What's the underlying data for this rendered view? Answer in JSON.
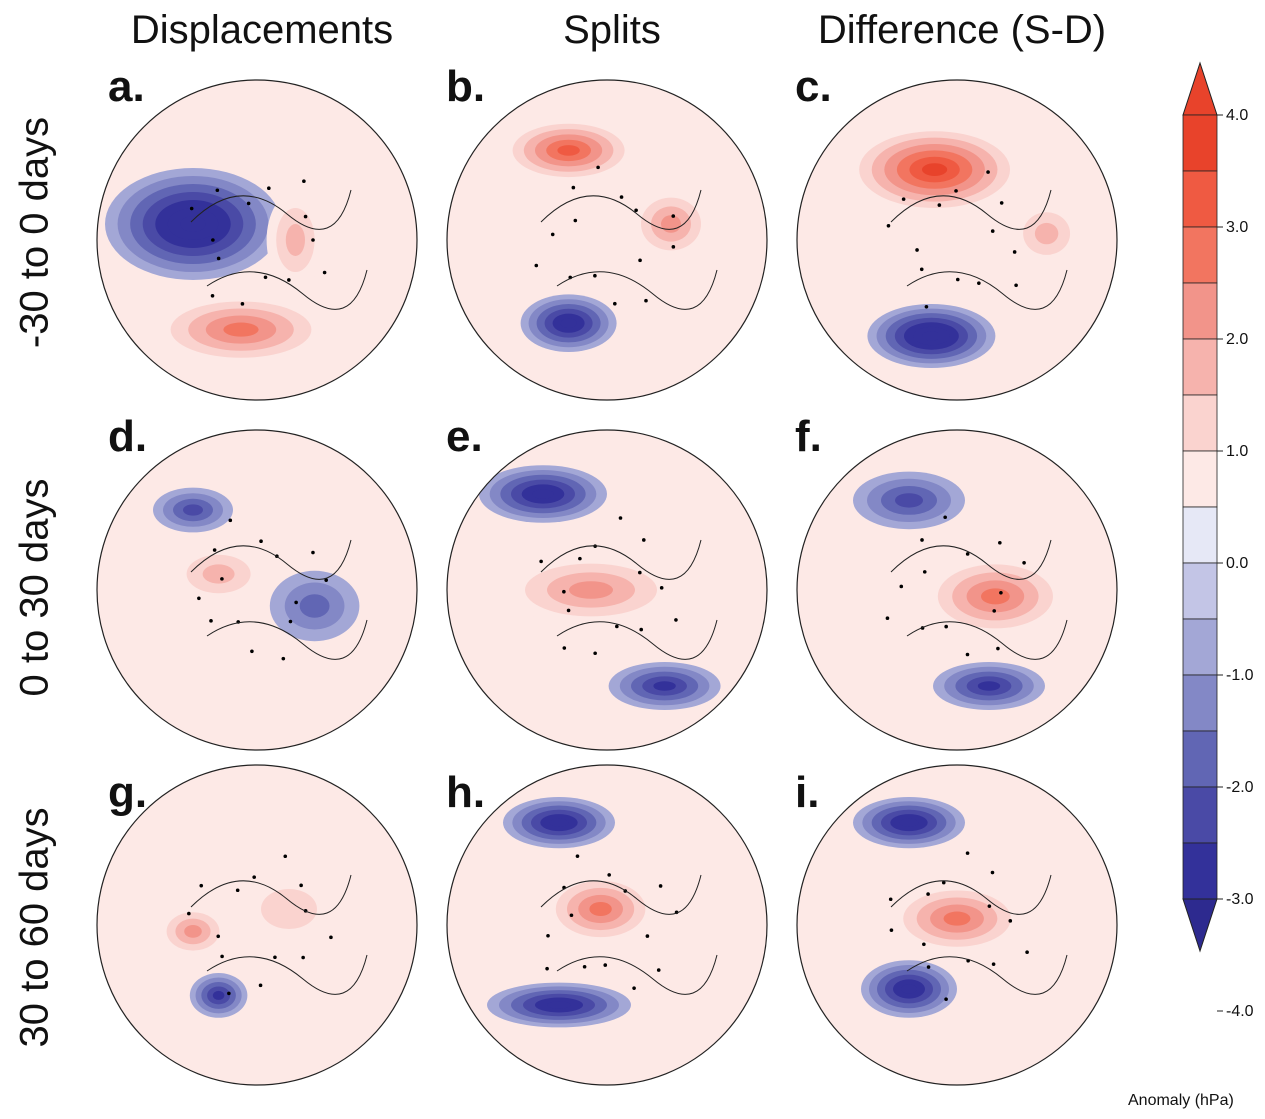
{
  "columns": [
    "Displacements",
    "Splits",
    "Difference (S-D)"
  ],
  "rows": [
    "-30 to 0 days",
    "0 to 30 days",
    "30 to 60 days"
  ],
  "panels": [
    "a.",
    "b.",
    "c.",
    "d.",
    "e.",
    "f.",
    "g.",
    "h.",
    "i."
  ],
  "colorbar": {
    "label": "Anomaly (hPa)",
    "ticks": [
      "4.0",
      "3.0",
      "2.0",
      "1.0",
      "0.0",
      "-1.0",
      "-2.0",
      "-3.0",
      "-4.0"
    ],
    "tick_values": [
      4,
      3,
      2,
      1,
      0,
      -1,
      -2,
      -3,
      -4
    ],
    "colors_top_to_bottom": [
      "#e8432b",
      "#ef5a42",
      "#f27560",
      "#f2948a",
      "#f6b3ad",
      "#fad3cf",
      "#fde9e6",
      "#e6e8f6",
      "#c3c5e6",
      "#a3a7d6",
      "#8388c6",
      "#6166b4",
      "#4a4aa6",
      "#33319a"
    ],
    "triangle_top": "#e8432b",
    "triangle_bottom": "#2d2a8f"
  },
  "chart_data": {
    "type": "heatmap",
    "title": "",
    "xlabel": "",
    "ylabel": "",
    "colorbar_range": [
      -4.0,
      4.0
    ],
    "colorbar_interval": 0.5,
    "units": "hPa",
    "panels": [
      {
        "label": "a.",
        "column": "Displacements",
        "row": "-30 to 0 days",
        "features": [
          {
            "kind": "low",
            "peak": -3.5
          },
          {
            "kind": "high",
            "peak": 2.5
          },
          {
            "kind": "high",
            "peak": 1.5
          }
        ]
      },
      {
        "label": "b.",
        "column": "Splits",
        "row": "-30 to 0 days",
        "features": [
          {
            "kind": "high",
            "peak": 3.0
          },
          {
            "kind": "high",
            "peak": 2.0
          },
          {
            "kind": "low",
            "peak": -3.0
          }
        ]
      },
      {
        "label": "c.",
        "column": "Difference (S-D)",
        "row": "-30 to 0 days",
        "features": [
          {
            "kind": "high",
            "peak": 3.5
          },
          {
            "kind": "low",
            "peak": -3.5
          },
          {
            "kind": "high",
            "peak": 1.5
          }
        ]
      },
      {
        "label": "d.",
        "column": "Displacements",
        "row": "0 to 30 days",
        "features": [
          {
            "kind": "low",
            "peak": -2.0
          },
          {
            "kind": "high",
            "peak": 1.5
          },
          {
            "kind": "low",
            "peak": -1.5
          }
        ]
      },
      {
        "label": "e.",
        "column": "Splits",
        "row": "0 to 30 days",
        "features": [
          {
            "kind": "low",
            "peak": -3.0
          },
          {
            "kind": "high",
            "peak": 2.0
          },
          {
            "kind": "low",
            "peak": -2.5
          }
        ]
      },
      {
        "label": "f.",
        "column": "Difference (S-D)",
        "row": "0 to 30 days",
        "features": [
          {
            "kind": "low",
            "peak": -2.0
          },
          {
            "kind": "high",
            "peak": 2.5
          },
          {
            "kind": "low",
            "peak": -2.5
          }
        ]
      },
      {
        "label": "g.",
        "column": "Displacements",
        "row": "30 to 60 days",
        "features": [
          {
            "kind": "high",
            "peak": 2.0
          },
          {
            "kind": "low",
            "peak": -2.5
          },
          {
            "kind": "high",
            "peak": 1.0
          }
        ]
      },
      {
        "label": "h.",
        "column": "Splits",
        "row": "30 to 60 days",
        "features": [
          {
            "kind": "low",
            "peak": -3.0
          },
          {
            "kind": "high",
            "peak": 2.5
          },
          {
            "kind": "low",
            "peak": -3.0
          }
        ]
      },
      {
        "label": "i.",
        "column": "Difference (S-D)",
        "row": "30 to 60 days",
        "features": [
          {
            "kind": "low",
            "peak": -3.0
          },
          {
            "kind": "high",
            "peak": 2.5
          },
          {
            "kind": "low",
            "peak": -3.0
          }
        ]
      }
    ]
  }
}
